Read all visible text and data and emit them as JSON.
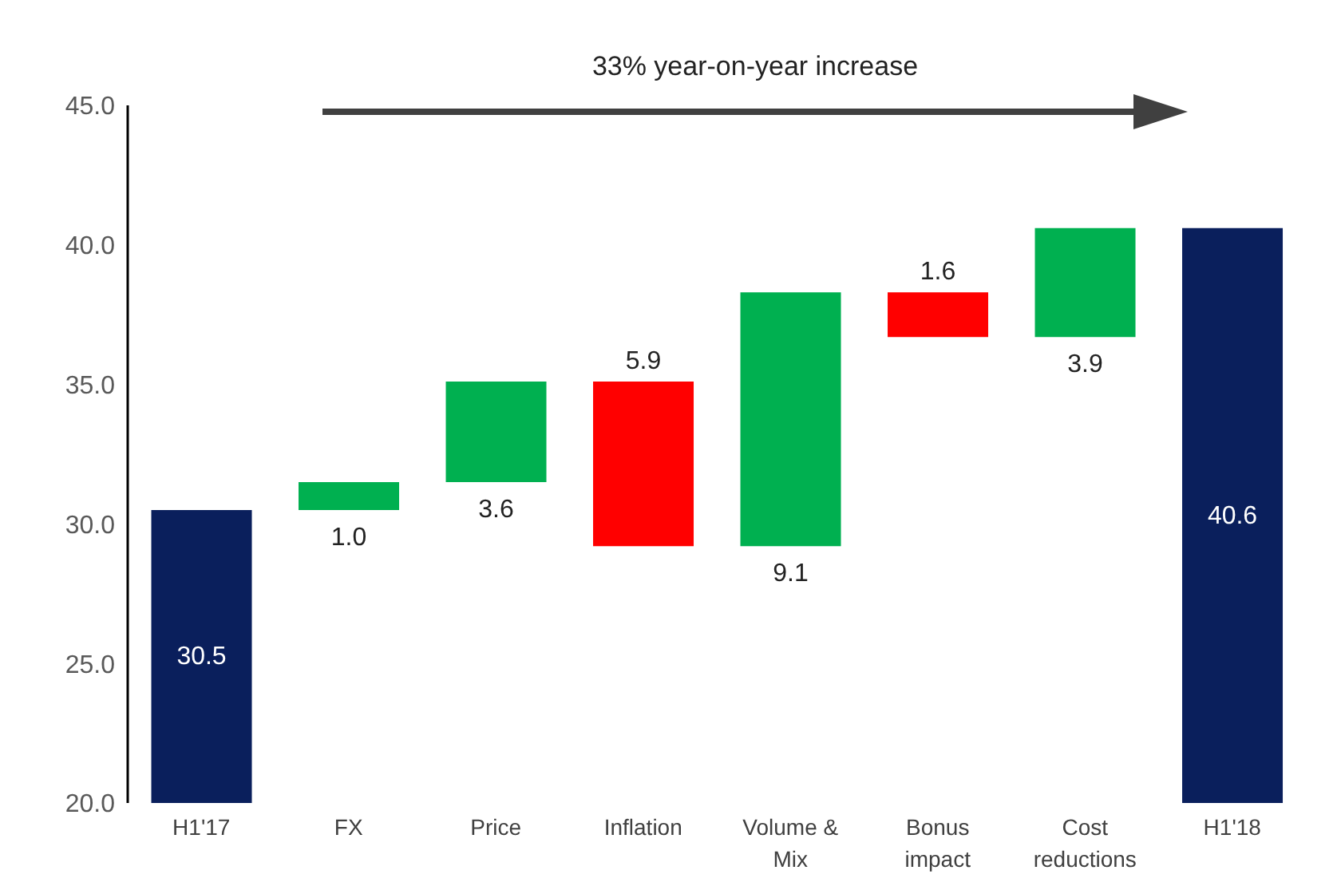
{
  "chart_data": {
    "type": "bar",
    "categories": [
      "H1'17",
      "FX",
      "Price",
      "Inflation",
      "Volume & Mix",
      "Bonus impact",
      "Cost reductions",
      "H1'18"
    ],
    "values": [
      30.5,
      1.0,
      3.6,
      -5.9,
      9.1,
      -1.6,
      3.9,
      40.6
    ],
    "base": [
      0,
      30.5,
      31.5,
      35.1,
      29.2,
      38.3,
      36.7,
      0
    ],
    "colors": [
      "#0a1f5c",
      "#00b050",
      "#00b050",
      "#ff0000",
      "#00b050",
      "#ff0000",
      "#00b050",
      "#0a1f5c"
    ],
    "value_labels": [
      "30.5",
      "1.0",
      "3.6",
      "5.9",
      "9.1",
      "1.6",
      "3.9",
      "40.6"
    ],
    "ylim": [
      20,
      45
    ],
    "yticks": [
      {
        "value": 20,
        "label": "20.0"
      },
      {
        "value": 25,
        "label": "25.0"
      },
      {
        "value": 30,
        "label": "30.0"
      },
      {
        "value": 35,
        "label": "35.0"
      },
      {
        "value": 40,
        "label": "40.0"
      },
      {
        "value": 45,
        "label": "45.0"
      }
    ],
    "grid": false,
    "legend": false,
    "annotations": [
      "33% year-on-year increase"
    ]
  }
}
